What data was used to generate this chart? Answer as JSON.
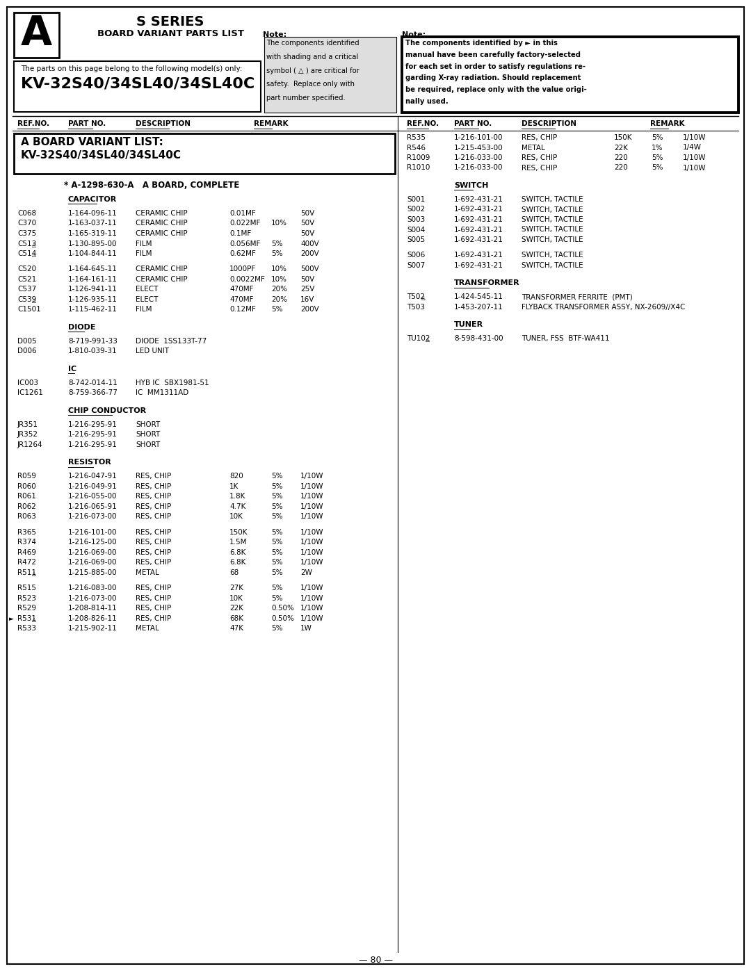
{
  "header": {
    "letter": "A",
    "series": "S SERIES",
    "subtitle": "BOARD VARIANT PARTS LIST",
    "models_label": "The parts on this page belong to the following model(s) only:",
    "models": "KV-32S40/34SL40/34SL40C",
    "note1_title": "Note:",
    "note1_lines": [
      "The components identified",
      "with shading and a critical",
      "symbol ( △ ) are critical for",
      "safety.  Replace only with",
      "part number specified."
    ],
    "note2_title": "Note:",
    "note2_lines": [
      "The components identified by ► in this",
      "manual have been carefully factory-selected",
      "for each set in order to satisfy regulations re-",
      "garding X-ray radiation. Should replacement",
      "be required, replace only with the value origi-",
      "nally used."
    ]
  },
  "variant_box": [
    "A BOARD VARIANT LIST:",
    "KV-32S40/34SL40/34SL40C"
  ],
  "board_complete": "* A-1298-630-A   A BOARD, COMPLETE",
  "page_number": "— 80 —",
  "left_sections": [
    {
      "title": "CAPACITOR",
      "rows": [
        [
          false,
          false,
          "C068",
          "1-164-096-11",
          "CERAMIC CHIP",
          "0.01MF",
          "",
          "50V"
        ],
        [
          false,
          false,
          "C370",
          "1-163-037-11",
          "CERAMIC CHIP",
          "0.022MF",
          "10%",
          "50V"
        ],
        [
          false,
          false,
          "C375",
          "1-165-319-11",
          "CERAMIC CHIP",
          "0.1MF",
          "",
          "50V"
        ],
        [
          true,
          true,
          "C513",
          "1-130-895-00",
          "FILM",
          "0.056MF",
          "5%",
          "400V"
        ],
        [
          true,
          true,
          "C514",
          "1-104-844-11",
          "FILM",
          "0.62MF",
          "5%",
          "200V"
        ],
        [
          false,
          false,
          "",
          "",
          "",
          "",
          "",
          ""
        ],
        [
          false,
          false,
          "C520",
          "1-164-645-11",
          "CERAMIC CHIP",
          "1000PF",
          "10%",
          "500V"
        ],
        [
          false,
          false,
          "C521",
          "1-164-161-11",
          "CERAMIC CHIP",
          "0.0022MF",
          "10%",
          "50V"
        ],
        [
          false,
          false,
          "C537",
          "1-126-941-11",
          "ELECT",
          "470MF",
          "20%",
          "25V"
        ],
        [
          true,
          true,
          "C539",
          "1-126-935-11",
          "ELECT",
          "470MF",
          "20%",
          "16V"
        ],
        [
          false,
          false,
          "C1501",
          "1-115-462-11",
          "FILM",
          "0.12MF",
          "5%",
          "200V"
        ]
      ]
    },
    {
      "title": "DIODE",
      "rows": [
        [
          false,
          false,
          "D005",
          "8-719-991-33",
          "DIODE  1SS133T-77",
          "",
          "",
          ""
        ],
        [
          false,
          false,
          "D006",
          "1-810-039-31",
          "LED UNIT",
          "",
          "",
          ""
        ]
      ]
    },
    {
      "title": "IC",
      "rows": [
        [
          false,
          false,
          "IC003",
          "8-742-014-11",
          "HYB IC  SBX1981-51",
          "",
          "",
          ""
        ],
        [
          false,
          false,
          "IC1261",
          "8-759-366-77",
          "IC  MM1311AD",
          "",
          "",
          ""
        ]
      ]
    },
    {
      "title": "CHIP CONDUCTOR",
      "rows": [
        [
          false,
          false,
          "JR351",
          "1-216-295-91",
          "SHORT",
          "",
          "",
          ""
        ],
        [
          false,
          false,
          "JR352",
          "1-216-295-91",
          "SHORT",
          "",
          "",
          ""
        ],
        [
          false,
          false,
          "JR1264",
          "1-216-295-91",
          "SHORT",
          "",
          "",
          ""
        ]
      ]
    },
    {
      "title": "RESISTOR",
      "rows": [
        [
          false,
          false,
          "R059",
          "1-216-047-91",
          "RES, CHIP",
          "820",
          "5%",
          "1/10W"
        ],
        [
          false,
          false,
          "R060",
          "1-216-049-91",
          "RES, CHIP",
          "1K",
          "5%",
          "1/10W"
        ],
        [
          false,
          false,
          "R061",
          "1-216-055-00",
          "RES, CHIP",
          "1.8K",
          "5%",
          "1/10W"
        ],
        [
          false,
          false,
          "R062",
          "1-216-065-91",
          "RES, CHIP",
          "4.7K",
          "5%",
          "1/10W"
        ],
        [
          false,
          false,
          "R063",
          "1-216-073-00",
          "RES, CHIP",
          "10K",
          "5%",
          "1/10W"
        ],
        [
          false,
          false,
          "",
          "",
          "",
          "",
          "",
          ""
        ],
        [
          false,
          false,
          "R365",
          "1-216-101-00",
          "RES, CHIP",
          "150K",
          "5%",
          "1/10W"
        ],
        [
          false,
          false,
          "R374",
          "1-216-125-00",
          "RES, CHIP",
          "1.5M",
          "5%",
          "1/10W"
        ],
        [
          false,
          false,
          "R469",
          "1-216-069-00",
          "RES, CHIP",
          "6.8K",
          "5%",
          "1/10W"
        ],
        [
          false,
          false,
          "R472",
          "1-216-069-00",
          "RES, CHIP",
          "6.8K",
          "5%",
          "1/10W"
        ],
        [
          true,
          true,
          "R511",
          "1-215-885-00",
          "METAL",
          "68",
          "5%",
          "2W"
        ],
        [
          false,
          false,
          "",
          "",
          "",
          "",
          "",
          ""
        ],
        [
          false,
          false,
          "R515",
          "1-216-083-00",
          "RES, CHIP",
          "27K",
          "5%",
          "1/10W"
        ],
        [
          false,
          false,
          "R523",
          "1-216-073-00",
          "RES, CHIP",
          "10K",
          "5%",
          "1/10W"
        ],
        [
          false,
          false,
          "R529",
          "1-208-814-11",
          "RES, CHIP",
          "22K",
          "0.50%",
          "1/10W"
        ],
        [
          true,
          true,
          "R531",
          "1-208-826-11",
          "RES, CHIP",
          "68K",
          "0.50%",
          "1/10W"
        ],
        [
          false,
          false,
          "R533",
          "1-215-902-11",
          "METAL",
          "47K",
          "5%",
          "1W"
        ]
      ]
    }
  ],
  "right_sections": [
    {
      "title": "",
      "rows": [
        [
          false,
          false,
          "R535",
          "1-216-101-00",
          "RES, CHIP",
          "150K",
          "5%",
          "1/10W"
        ],
        [
          false,
          false,
          "R546",
          "1-215-453-00",
          "METAL",
          "22K",
          "1%",
          "1/4W"
        ],
        [
          false,
          false,
          "R1009",
          "1-216-033-00",
          "RES, CHIP",
          "220",
          "5%",
          "1/10W"
        ],
        [
          false,
          false,
          "R1010",
          "1-216-033-00",
          "RES, CHIP",
          "220",
          "5%",
          "1/10W"
        ]
      ]
    },
    {
      "title": "SWITCH",
      "rows": [
        [
          false,
          false,
          "S001",
          "1-692-431-21",
          "SWITCH, TACTILE",
          "",
          "",
          ""
        ],
        [
          false,
          false,
          "S002",
          "1-692-431-21",
          "SWITCH, TACTILE",
          "",
          "",
          ""
        ],
        [
          false,
          false,
          "S003",
          "1-692-431-21",
          "SWITCH, TACTILE",
          "",
          "",
          ""
        ],
        [
          false,
          false,
          "S004",
          "1-692-431-21",
          "SWITCH, TACTILE",
          "",
          "",
          ""
        ],
        [
          false,
          false,
          "S005",
          "1-692-431-21",
          "SWITCH, TACTILE",
          "",
          "",
          ""
        ],
        [
          false,
          false,
          "",
          "",
          "",
          "",
          "",
          ""
        ],
        [
          false,
          false,
          "S006",
          "1-692-431-21",
          "SWITCH, TACTILE",
          "",
          "",
          ""
        ],
        [
          false,
          false,
          "S007",
          "1-692-431-21",
          "SWITCH, TACTILE",
          "",
          "",
          ""
        ]
      ]
    },
    {
      "title": "TRANSFORMER",
      "rows": [
        [
          true,
          true,
          "T502",
          "1-424-545-11",
          "TRANSFORMER FERRITE  (PMT)",
          "",
          "",
          ""
        ],
        [
          true,
          false,
          "T503",
          "1-453-207-11",
          "FLYBACK TRANSFORMER ASSY, NX-2609//X4C",
          "",
          "",
          ""
        ]
      ]
    },
    {
      "title": "TUNER",
      "rows": [
        [
          true,
          true,
          "TU102",
          "8-598-431-00",
          "TUNER, FSS  BTF-WA411",
          "",
          "",
          ""
        ]
      ]
    }
  ]
}
